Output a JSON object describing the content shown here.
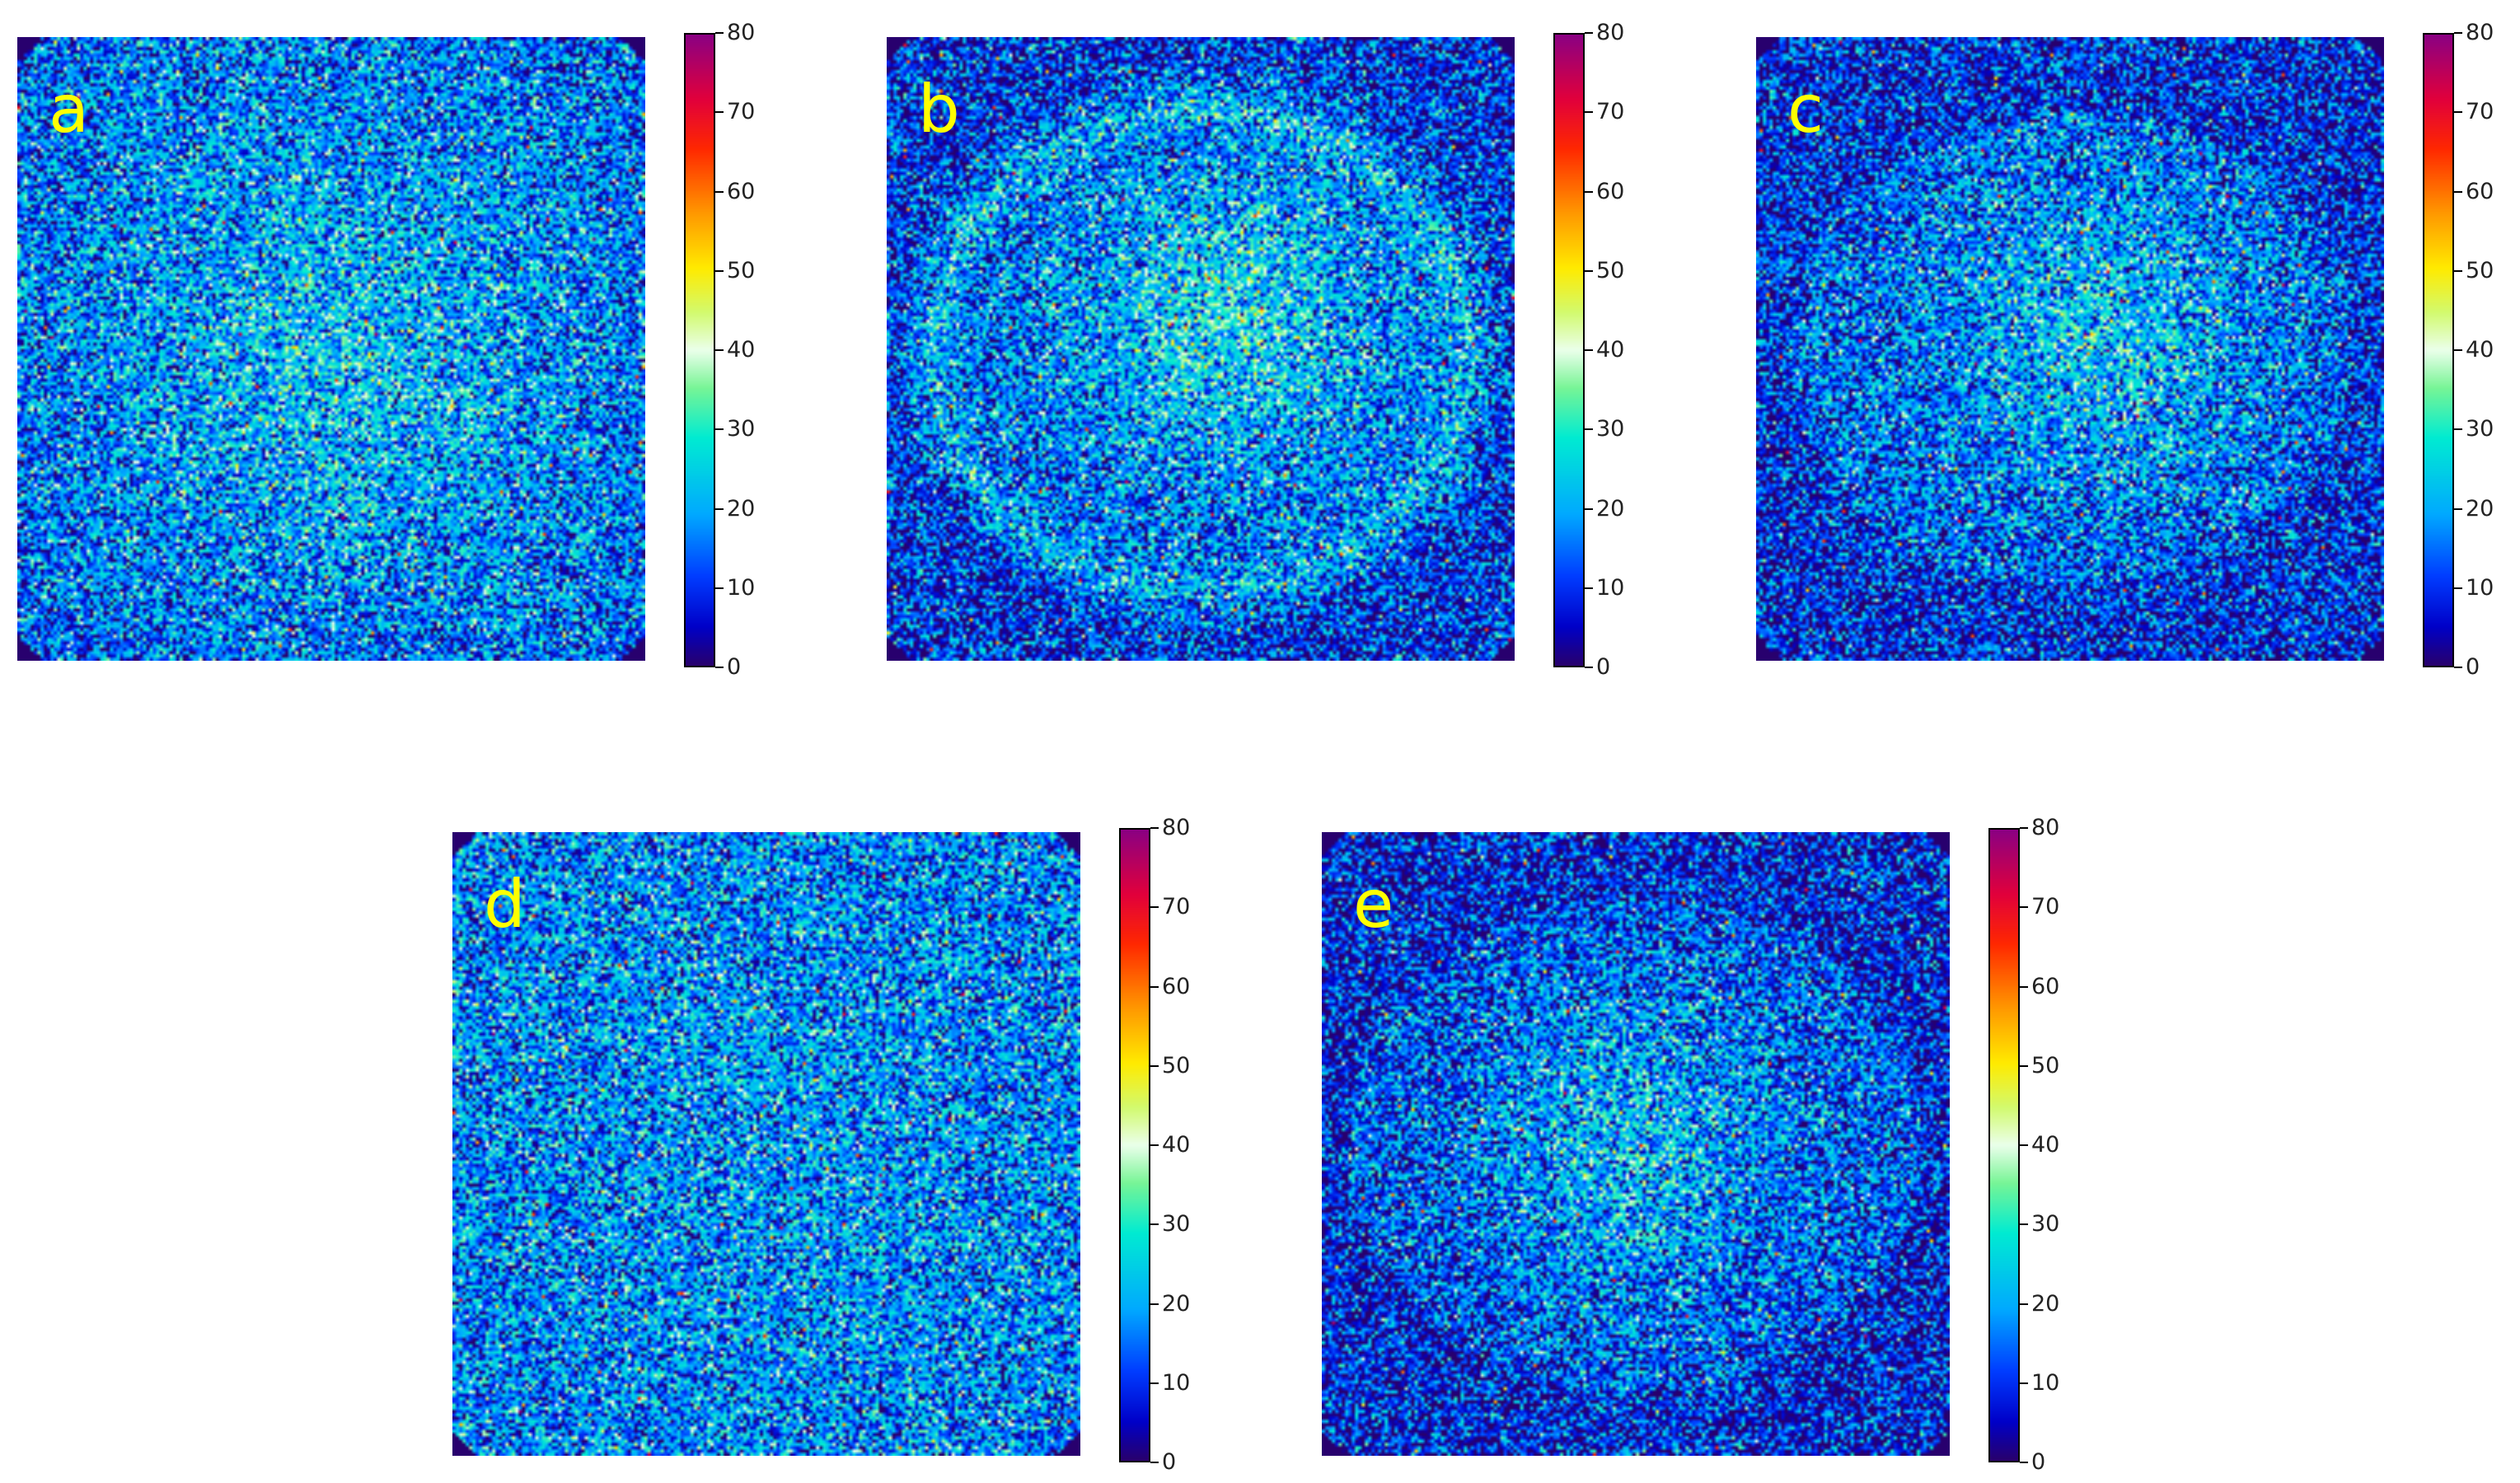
{
  "colorbar_ticks": [
    "0",
    "10",
    "20",
    "30",
    "40",
    "50",
    "60",
    "70",
    "80"
  ],
  "chart_data": [
    {
      "type": "heatmap",
      "panel": "a",
      "colorbar": {
        "min": 0,
        "max": 80,
        "colormap": "jet-like"
      }
    },
    {
      "type": "heatmap",
      "panel": "b",
      "colorbar": {
        "min": 0,
        "max": 80,
        "colormap": "jet-like"
      }
    },
    {
      "type": "heatmap",
      "panel": "c",
      "colorbar": {
        "min": 0,
        "max": 80,
        "colormap": "jet-like"
      }
    },
    {
      "type": "heatmap",
      "panel": "d",
      "colorbar": {
        "min": 0,
        "max": 80,
        "colormap": "jet-like"
      }
    },
    {
      "type": "heatmap",
      "panel": "e",
      "colorbar": {
        "min": 0,
        "max": 80,
        "colormap": "jet-like"
      }
    }
  ],
  "colors": {
    "panel_letter": "#ffff00",
    "background": "#ffffff"
  }
}
